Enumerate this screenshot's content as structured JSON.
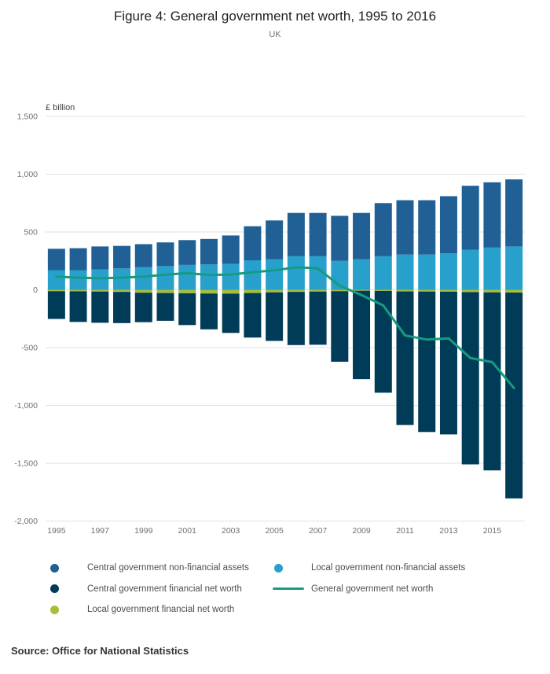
{
  "header": {
    "title": "Figure 4: General government net worth, 1995 to 2016",
    "subtitle": "UK"
  },
  "chart_data": {
    "type": "bar",
    "title": "Figure 4: General government net worth, 1995 to 2016",
    "subtitle": "UK",
    "xlabel": "",
    "ylabel": "£ billion",
    "unit_label": "£ billion",
    "grid": true,
    "legend_position": "bottom",
    "ylim": [
      -2000,
      1500
    ],
    "y_ticks": [
      1500,
      1000,
      500,
      0,
      -500,
      -1000,
      -1500,
      -2000
    ],
    "categories": [
      1995,
      1996,
      1997,
      1998,
      1999,
      2000,
      2001,
      2002,
      2003,
      2004,
      2005,
      2006,
      2007,
      2008,
      2009,
      2010,
      2011,
      2012,
      2013,
      2014,
      2015,
      2016
    ],
    "x_tick_labels": [
      "1995",
      "1997",
      "1999",
      "2001",
      "2003",
      "2005",
      "2007",
      "2009",
      "2011",
      "2013",
      "2015"
    ],
    "series": [
      {
        "name": "Local government non-financial assets",
        "type": "bar",
        "color": "#27a0cc",
        "values": [
          170,
          170,
          175,
          185,
          195,
          205,
          215,
          220,
          225,
          255,
          265,
          290,
          290,
          250,
          265,
          290,
          305,
          305,
          315,
          345,
          365,
          375
        ]
      },
      {
        "name": "Central government non-financial assets",
        "type": "bar",
        "color": "#206095",
        "values": [
          185,
          190,
          200,
          195,
          200,
          205,
          215,
          220,
          245,
          295,
          335,
          375,
          375,
          390,
          400,
          460,
          470,
          470,
          495,
          555,
          565,
          580
        ]
      },
      {
        "name": "Local government financial net worth",
        "type": "bar",
        "color": "#a8bd3a",
        "values": [
          -12,
          -13,
          -15,
          -18,
          -25,
          -28,
          -30,
          -32,
          -33,
          -28,
          -22,
          -18,
          -15,
          -12,
          -8,
          -10,
          -14,
          -15,
          -16,
          -20,
          -22,
          -24
        ]
      },
      {
        "name": "Central government financial net worth",
        "type": "bar",
        "color": "#003c57",
        "values": [
          -240,
          -265,
          -270,
          -270,
          -255,
          -240,
          -275,
          -310,
          -340,
          -385,
          -420,
          -460,
          -460,
          -610,
          -765,
          -880,
          -1155,
          -1215,
          -1235,
          -1490,
          -1540,
          -1780
        ]
      },
      {
        "name": "General government net worth",
        "type": "line",
        "color": "#179b80",
        "values": [
          115,
          105,
          100,
          105,
          115,
          130,
          145,
          128,
          132,
          152,
          168,
          195,
          185,
          35,
          -45,
          -135,
          -395,
          -430,
          -420,
          -590,
          -625,
          -850
        ]
      }
    ]
  },
  "legend": {
    "items": [
      {
        "label": "Central government non-financial assets",
        "marker": "dot",
        "color": "#206095"
      },
      {
        "label": "Local government non-financial assets",
        "marker": "dot",
        "color": "#27a0cc"
      },
      {
        "label": "Central government financial net worth",
        "marker": "dot",
        "color": "#003c57"
      },
      {
        "label": "General government net worth",
        "marker": "line",
        "color": "#179b80"
      },
      {
        "label": "Local government financial net worth",
        "marker": "dot",
        "color": "#a8bd3a"
      }
    ]
  },
  "source": "Source: Office for National Statistics"
}
